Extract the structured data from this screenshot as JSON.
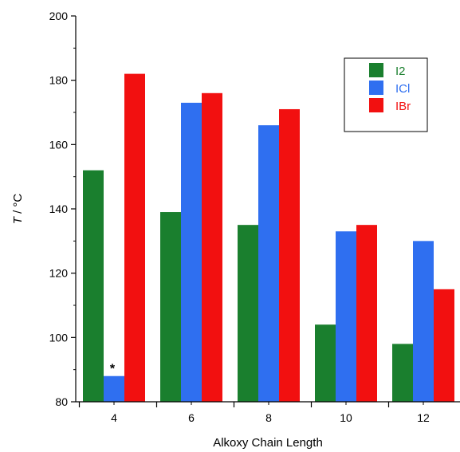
{
  "chart_data": {
    "type": "bar",
    "categories": [
      "4",
      "6",
      "8",
      "10",
      "12"
    ],
    "series": [
      {
        "name": "I2",
        "color": "#1a7f2e",
        "values": [
          152,
          139,
          135,
          104,
          98
        ]
      },
      {
        "name": "ICl",
        "color": "#2f6ff0",
        "values": [
          88,
          173,
          166,
          133,
          130
        ]
      },
      {
        "name": "IBr",
        "color": "#f21010",
        "values": [
          182,
          176,
          171,
          135,
          115
        ]
      }
    ],
    "xlabel": "Alkoxy Chain Length",
    "ylabel": "T / °C",
    "ylim": [
      80,
      200
    ],
    "yticks": [
      "80",
      "100",
      "120",
      "140",
      "160",
      "180",
      "200"
    ],
    "legend": "top-right",
    "grid": false,
    "annotations": [
      {
        "text": "*",
        "category": "4",
        "series": "ICl"
      }
    ]
  }
}
